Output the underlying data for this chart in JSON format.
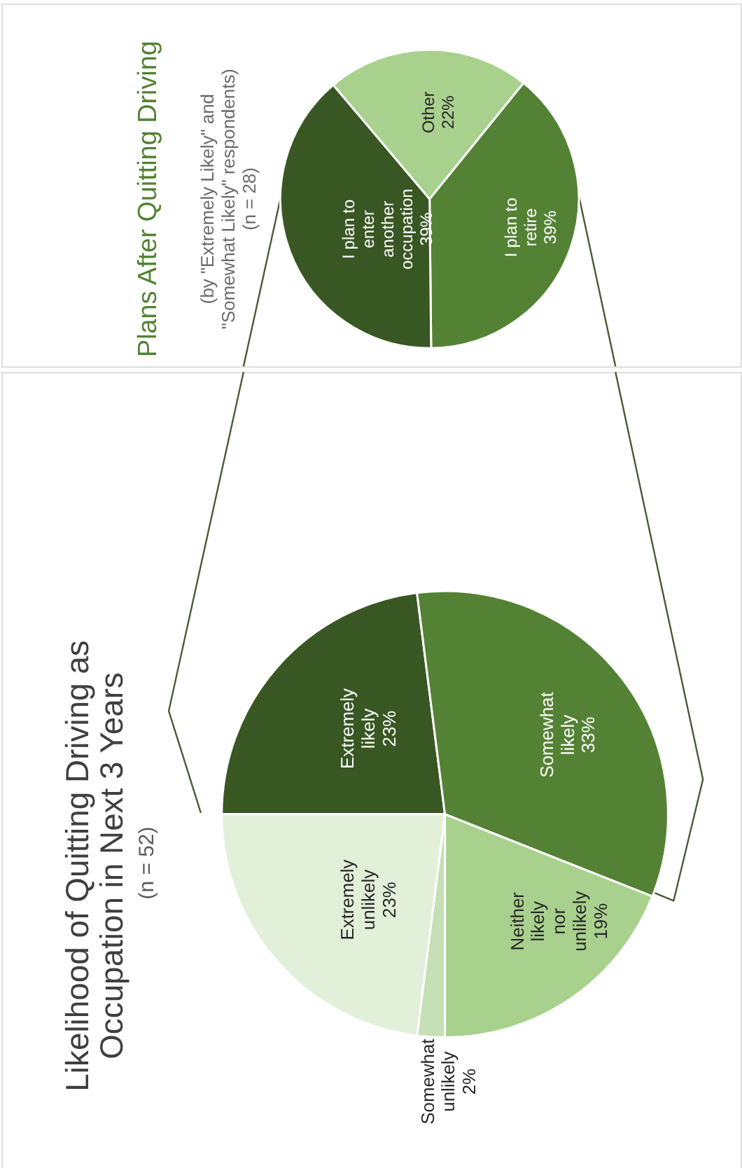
{
  "chart_data": [
    {
      "type": "pie",
      "title": "Likelihood of Quitting Driving as Occupation in Next 3 Years",
      "subtitle": "(n = 52)",
      "categories": [
        "Extremely likely",
        "Somewhat likely",
        "Neither likely nor unlikely",
        "Somewhat unlikely",
        "Extremely unlikely"
      ],
      "values": [
        23,
        33,
        19,
        2,
        23
      ],
      "value_labels": [
        "23%",
        "33%",
        "19%",
        "2%",
        "23%"
      ],
      "colors": [
        "#385723",
        "#548235",
        "#a9d18e",
        "#c5e0b4",
        "#e2efd9"
      ],
      "legend": false
    },
    {
      "type": "pie",
      "title": "Plans After Quitting Driving",
      "subtitle": "(by \"Extremely Likely\" and \"Somewhat Likely\" respondents) (n = 28)",
      "categories": [
        "I plan to retire",
        "I plan to enter another occupation",
        "Other"
      ],
      "values": [
        39,
        39,
        22
      ],
      "value_labels": [
        "39%",
        "39%",
        "22%"
      ],
      "colors": [
        "#548235",
        "#385723",
        "#a9d18e"
      ],
      "legend": false
    }
  ]
}
